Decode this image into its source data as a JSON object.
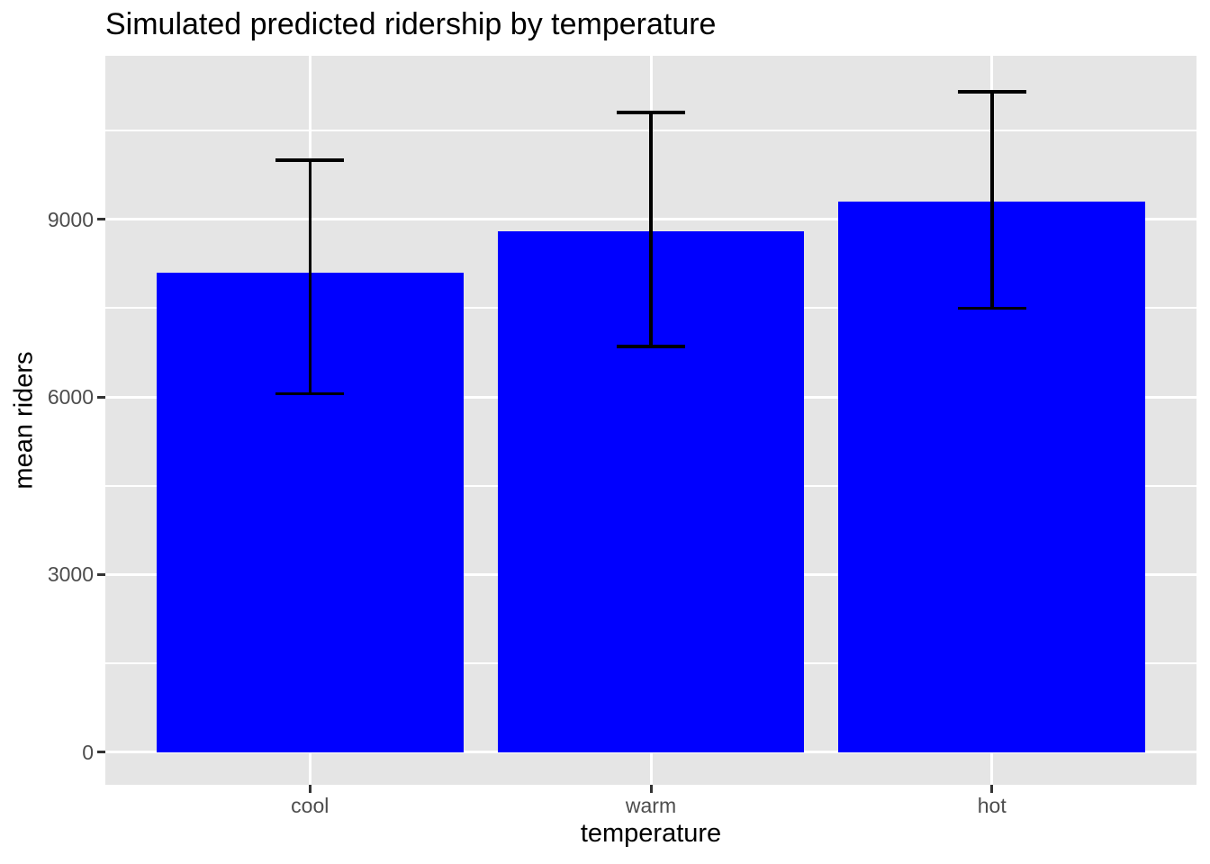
{
  "chart_data": {
    "type": "bar",
    "title": "Simulated predicted ridership by temperature",
    "xlabel": "temperature",
    "ylabel": "mean riders",
    "categories": [
      "cool",
      "warm",
      "hot"
    ],
    "values": [
      8100,
      8800,
      9300
    ],
    "error_bars": {
      "low": [
        6050,
        6850,
        7500
      ],
      "high": [
        10000,
        10800,
        11150
      ]
    },
    "yticks": [
      0,
      3000,
      6000,
      9000
    ],
    "ytick_labels": [
      "0",
      "3000",
      "6000",
      "9000"
    ],
    "minor_gridlines": [
      1500,
      4500,
      7500,
      10500
    ],
    "ylim": [
      -550,
      11760
    ],
    "grid": true,
    "legend": false,
    "colors": {
      "bar": "#0000FF",
      "panel_background": "#E5E5E5",
      "gridline": "#FFFFFF",
      "error_bar": "#000000",
      "tick_label": "#4D4D4D",
      "tick_mark": "#333333",
      "title": "#000000",
      "axis_title": "#000000",
      "page_background": "#FFFFFF"
    }
  }
}
